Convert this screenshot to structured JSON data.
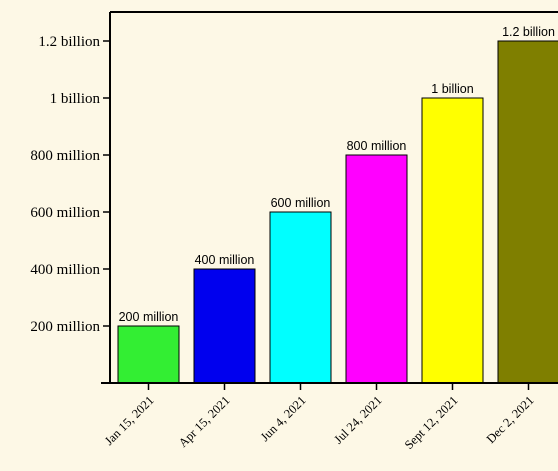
{
  "chart_data": {
    "type": "bar",
    "title": "",
    "xlabel": "",
    "ylabel": "",
    "categories": [
      "Jan 15, 2021",
      "Apr 15, 2021",
      "Jun 4, 2021",
      "Jul 24, 2021",
      "Sept 12, 2021",
      "Dec 2, 2021"
    ],
    "values": [
      200000000,
      400000000,
      600000000,
      800000000,
      1000000000,
      1200000000
    ],
    "data_labels": [
      "200 million",
      "400 million",
      "600 million",
      "800 million",
      "1 billion",
      "1.2 billion"
    ],
    "bar_colors": [
      "#33ee33",
      "#0000ee",
      "#00ffff",
      "#ff00ff",
      "#ffff00",
      "#7f7f00"
    ],
    "y_ticks": [
      200000000,
      400000000,
      600000000,
      800000000,
      1000000000,
      1200000000
    ],
    "y_tick_labels": [
      "200 million",
      "400 million",
      "600 million",
      "800 million",
      "1 billion",
      "1.2 billion"
    ],
    "ylim": [
      0,
      1300000000
    ],
    "grid": false,
    "legend": "none",
    "colors": {
      "background": "#fdf8e6",
      "axis": "#000000"
    }
  }
}
